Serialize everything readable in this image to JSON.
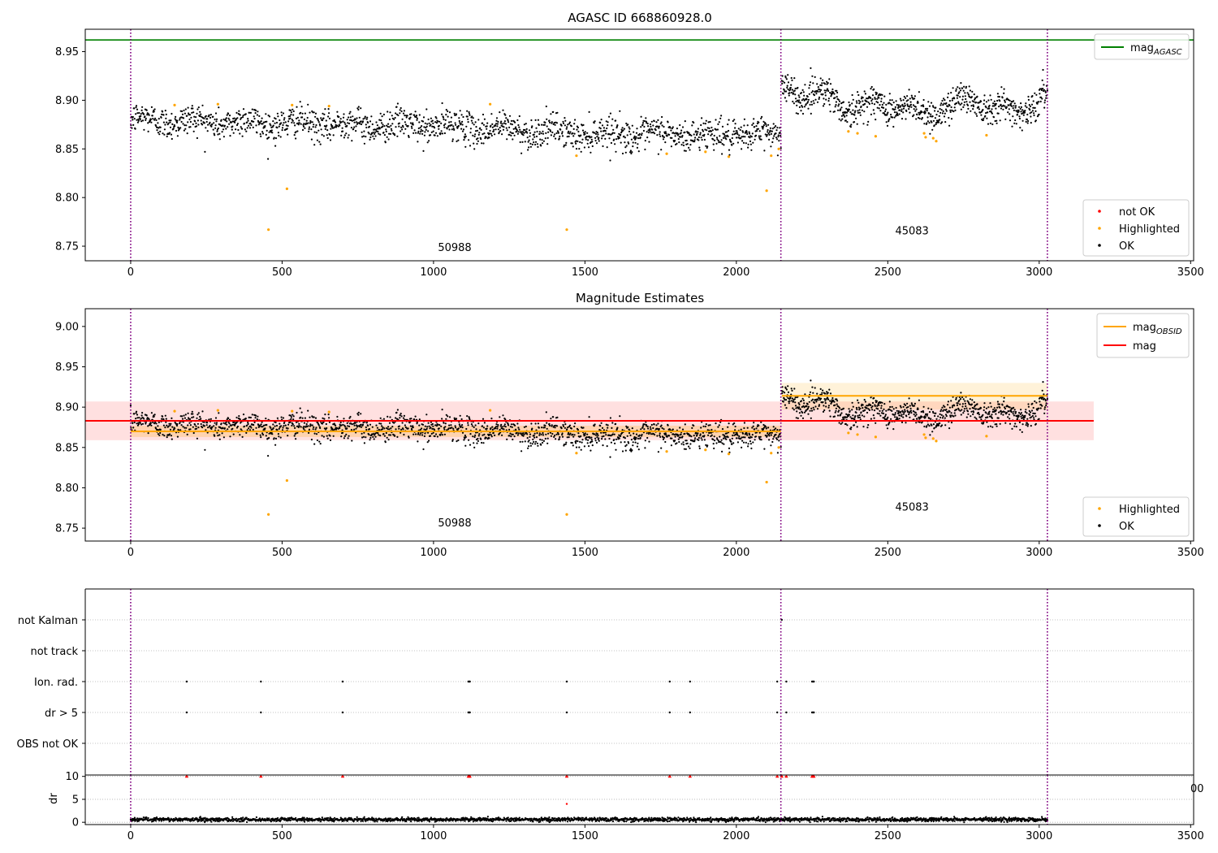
{
  "chart_data": [
    {
      "type": "scatter",
      "title": "AGASC ID 668860928.0",
      "xlim": [
        -150,
        3510
      ],
      "ylim": [
        8.735,
        8.973
      ],
      "x_ticks": [
        0,
        500,
        1000,
        1500,
        2000,
        2500,
        3000,
        3500
      ],
      "y_ticks": [
        8.75,
        8.8,
        8.85,
        8.9,
        8.95
      ],
      "y_tick_labels": [
        "8.75",
        "8.80",
        "8.85",
        "8.90",
        "8.95"
      ],
      "obsid_boundaries": [
        0,
        2147,
        3027
      ],
      "obsid_labels": [
        {
          "text": "50988",
          "x": 1070,
          "y": 8.745
        },
        {
          "text": "45083",
          "x": 2580,
          "y": 8.762
        }
      ],
      "lines": [
        {
          "name": "mag_AGASC",
          "y": 8.962,
          "x_range": [
            -150,
            3510
          ],
          "color": "#008000"
        }
      ],
      "legend_lines": [
        {
          "name": "mag",
          "subscript": "AGASC",
          "color": "#008000"
        }
      ],
      "legend_points": [
        {
          "name": "not OK",
          "color": "#ff0000"
        },
        {
          "name": "Highlighted",
          "color": "#ffa500"
        },
        {
          "name": "OK",
          "color": "#000000"
        }
      ],
      "ok_segments": [
        {
          "x0": 0,
          "x1": 2147,
          "n": 1700,
          "levels": [
            [
              0,
              8.88
            ],
            [
              500,
              8.876
            ],
            [
              1000,
              8.874
            ],
            [
              1500,
              8.866
            ],
            [
              2000,
              8.864
            ],
            [
              2147,
              8.866
            ]
          ],
          "noise": 0.01,
          "wave": 0.006,
          "period": 170
        },
        {
          "x0": 2150,
          "x1": 3027,
          "n": 800,
          "levels": [
            [
              2150,
              8.912
            ],
            [
              2300,
              8.904
            ],
            [
              2400,
              8.89
            ],
            [
              2500,
              8.898
            ],
            [
              2600,
              8.886
            ],
            [
              2800,
              8.902
            ],
            [
              2900,
              8.886
            ],
            [
              3027,
              8.904
            ]
          ],
          "noise": 0.01,
          "wave": 0.012,
          "period": 150
        }
      ],
      "highlighted_points": [
        [
          145,
          8.895
        ],
        [
          288,
          8.896
        ],
        [
          455,
          8.767
        ],
        [
          516,
          8.809
        ],
        [
          533,
          8.895
        ],
        [
          655,
          8.894
        ],
        [
          1187,
          8.896
        ],
        [
          1440,
          8.767
        ],
        [
          1472,
          8.843
        ],
        [
          1770,
          8.845
        ],
        [
          1898,
          8.847
        ],
        [
          1975,
          8.842
        ],
        [
          2100,
          8.807
        ],
        [
          2115,
          8.843
        ],
        [
          2140,
          8.85
        ],
        [
          2370,
          8.868
        ],
        [
          2400,
          8.866
        ],
        [
          2460,
          8.863
        ],
        [
          2620,
          8.866
        ],
        [
          2625,
          8.862
        ],
        [
          2650,
          8.861
        ],
        [
          2660,
          8.858
        ],
        [
          2826,
          8.864
        ]
      ],
      "not_ok_points": []
    },
    {
      "type": "scatter",
      "title": "Magnitude Estimates",
      "xlim": [
        -150,
        3510
      ],
      "ylim": [
        8.734,
        9.022
      ],
      "x_ticks": [
        0,
        500,
        1000,
        1500,
        2000,
        2500,
        3000,
        3500
      ],
      "y_ticks": [
        8.75,
        8.8,
        8.85,
        8.9,
        8.95,
        9.0
      ],
      "y_tick_labels": [
        "8.75",
        "8.80",
        "8.85",
        "8.90",
        "8.95",
        "9.00"
      ],
      "obsid_boundaries": [
        0,
        2147,
        3027
      ],
      "obsid_labels": [
        {
          "text": "50988",
          "x": 1070,
          "y": 8.752
        },
        {
          "text": "45083",
          "x": 2580,
          "y": 8.772
        }
      ],
      "bands": [
        {
          "x_range": [
            -150,
            3180
          ],
          "y_range": [
            8.859,
            8.907
          ],
          "color": "#ff0000",
          "opacity": 0.12
        },
        {
          "x_range": [
            0,
            2147
          ],
          "y_range": [
            8.863,
            8.877
          ],
          "color": "#ffa500",
          "opacity": 0.22
        },
        {
          "x_range": [
            2150,
            3027
          ],
          "y_range": [
            8.897,
            8.93
          ],
          "color": "#ffa500",
          "opacity": 0.15
        }
      ],
      "lines": [
        {
          "name": "mag",
          "y": 8.883,
          "x_range": [
            -150,
            3180
          ],
          "color": "#ff0000"
        },
        {
          "name": "mag_OBSID",
          "y": 8.87,
          "x_range": [
            0,
            2147
          ],
          "color": "#ffa500"
        },
        {
          "name": "mag_OBSID",
          "y": 8.914,
          "x_range": [
            2150,
            3027
          ],
          "color": "#ffa500"
        }
      ],
      "legend_lines": [
        {
          "name": "mag",
          "subscript": "OBSID",
          "color": "#ffa500"
        },
        {
          "name": "mag",
          "subscript": "",
          "color": "#ff0000"
        }
      ],
      "legend_points": [
        {
          "name": "Highlighted",
          "color": "#ffa500"
        },
        {
          "name": "OK",
          "color": "#000000"
        }
      ],
      "ok_segments": [
        {
          "x0": 0,
          "x1": 2147,
          "n": 1700,
          "levels": [
            [
              0,
              8.88
            ],
            [
              500,
              8.876
            ],
            [
              1000,
              8.874
            ],
            [
              1500,
              8.866
            ],
            [
              2000,
              8.864
            ],
            [
              2147,
              8.866
            ]
          ],
          "noise": 0.01,
          "wave": 0.006,
          "period": 170
        },
        {
          "x0": 2150,
          "x1": 3027,
          "n": 800,
          "levels": [
            [
              2150,
              8.912
            ],
            [
              2300,
              8.904
            ],
            [
              2400,
              8.89
            ],
            [
              2500,
              8.898
            ],
            [
              2600,
              8.886
            ],
            [
              2800,
              8.902
            ],
            [
              2900,
              8.886
            ],
            [
              3027,
              8.904
            ]
          ],
          "noise": 0.01,
          "wave": 0.012,
          "period": 150
        }
      ],
      "highlighted_points": [
        [
          145,
          8.895
        ],
        [
          288,
          8.896
        ],
        [
          455,
          8.767
        ],
        [
          516,
          8.809
        ],
        [
          533,
          8.895
        ],
        [
          655,
          8.894
        ],
        [
          1187,
          8.896
        ],
        [
          1440,
          8.767
        ],
        [
          1472,
          8.843
        ],
        [
          1770,
          8.845
        ],
        [
          1898,
          8.847
        ],
        [
          1975,
          8.842
        ],
        [
          2100,
          8.807
        ],
        [
          2115,
          8.843
        ],
        [
          2140,
          8.85
        ],
        [
          2370,
          8.868
        ],
        [
          2400,
          8.866
        ],
        [
          2460,
          8.863
        ],
        [
          2620,
          8.866
        ],
        [
          2625,
          8.862
        ],
        [
          2650,
          8.861
        ],
        [
          2660,
          8.858
        ],
        [
          2826,
          8.864
        ]
      ]
    },
    {
      "type": "scatter",
      "title": "",
      "xlim": [
        -150,
        3510
      ],
      "categories": [
        "not Kalman",
        "not track",
        "Ion. rad.",
        "dr > 5",
        "OBS not OK"
      ],
      "obsid_boundaries": [
        0,
        2147,
        3027
      ],
      "flag_x": {
        "not Kalman": [
          2150
        ],
        "not track": [],
        "Ion. rad.": [
          185,
          430,
          700,
          1115,
          1118,
          1120,
          1440,
          1780,
          1847,
          2135,
          2165,
          2250,
          2253,
          2256
        ],
        "dr > 5": [
          185,
          430,
          700,
          1115,
          1118,
          1120,
          1440,
          1780,
          1847,
          2135,
          2165,
          2250,
          2253,
          2256
        ],
        "OBS not OK": []
      }
    },
    {
      "type": "scatter",
      "title": "",
      "ylabel": "dr",
      "xlim": [
        -150,
        3510
      ],
      "ylim": [
        -0.5,
        10.3
      ],
      "x_ticks": [
        0,
        500,
        1000,
        1500,
        2000,
        2500,
        3000,
        3500
      ],
      "y_ticks": [
        0,
        5,
        10
      ],
      "y_tick_labels": [
        "0",
        "5",
        "10"
      ],
      "obsid_boundaries": [
        0,
        2147,
        3027
      ],
      "high_dr_points": [
        [
          185,
          10
        ],
        [
          430,
          10
        ],
        [
          700,
          10
        ],
        [
          1115,
          10
        ],
        [
          1118,
          10
        ],
        [
          1120,
          10
        ],
        [
          1440,
          10
        ],
        [
          1780,
          10
        ],
        [
          1847,
          10
        ],
        [
          2135,
          10
        ],
        [
          2150,
          10
        ],
        [
          2165,
          10
        ],
        [
          2250,
          10
        ],
        [
          2253,
          10
        ],
        [
          2256,
          10
        ]
      ],
      "mid_dr_points": [
        [
          1440,
          4.0
        ]
      ],
      "baseline": {
        "x0": 0,
        "x1": 3027,
        "n": 2500,
        "mean": 0.6,
        "noise": 0.35
      },
      "clipped_edge_text": "00"
    }
  ]
}
